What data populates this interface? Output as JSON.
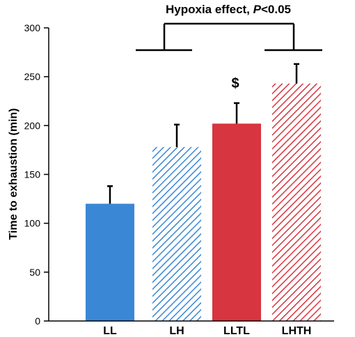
{
  "chart_data": {
    "type": "bar",
    "categories": [
      "LL",
      "LH",
      "LLTL",
      "LHTH"
    ],
    "values": [
      120,
      178,
      202,
      243
    ],
    "errors": [
      18,
      23,
      21,
      20
    ],
    "fills": [
      {
        "color": "#3a87d6",
        "pattern": "solid"
      },
      {
        "color": "#3a87d6",
        "pattern": "hatch"
      },
      {
        "color": "#d7353f",
        "pattern": "solid"
      },
      {
        "color": "#d7353f",
        "pattern": "hatch"
      }
    ],
    "title": "",
    "xlabel": "",
    "ylabel": "Time to exhaustion (min)",
    "ylim": [
      0,
      300
    ],
    "yticks": [
      0,
      50,
      100,
      150,
      200,
      250,
      300
    ],
    "grid": false,
    "annotations": {
      "bracket_label_main": "Hypoxia effect, ",
      "bracket_label_italic": "P",
      "bracket_label_tail": "<0.05",
      "marker": "$",
      "marker_category": "LLTL"
    }
  }
}
